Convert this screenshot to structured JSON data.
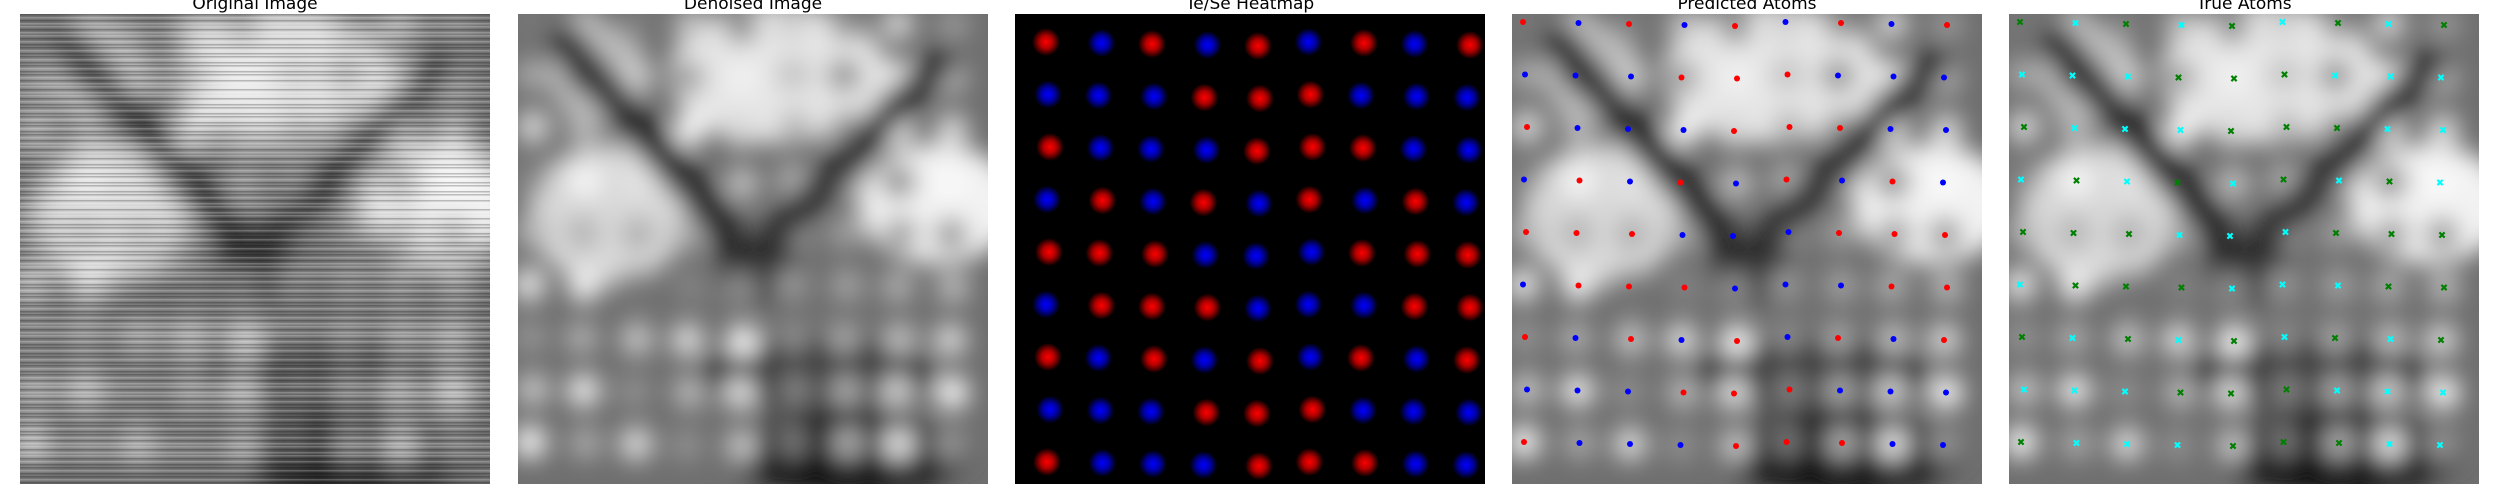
{
  "panels": [
    {
      "title": "Original Image",
      "kind": "grayscale",
      "style": "noisy"
    },
    {
      "title": "Denoised Image",
      "kind": "grayscale",
      "style": "smooth"
    },
    {
      "title": "Te/Se Heatmap",
      "kind": "heatmap"
    },
    {
      "title": "Predicted Atoms",
      "kind": "overlay",
      "markers": "dots"
    },
    {
      "title": "True Atoms",
      "kind": "overlay",
      "markers": "crosses"
    }
  ],
  "colors": {
    "te": "#ff0000",
    "se": "#0000ff",
    "true_a": "#00ffff",
    "true_b": "#008000",
    "heatmap_background": "#000000"
  },
  "lattice": {
    "rows": 9,
    "cols": 9
  }
}
